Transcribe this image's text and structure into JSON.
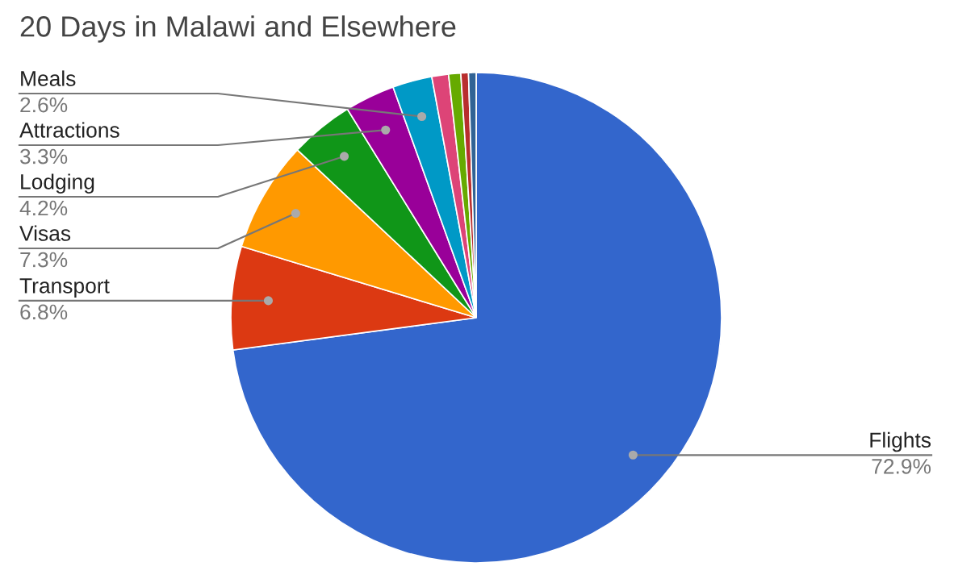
{
  "chart_data": {
    "type": "pie",
    "title": "20 Days in Malawi and Elsewhere",
    "categories": [
      "Flights",
      "Transport",
      "Visas",
      "Lodging",
      "Attractions",
      "Meals",
      null,
      null,
      null,
      null
    ],
    "values": [
      72.9,
      6.8,
      7.3,
      4.2,
      3.3,
      2.6,
      1.1,
      0.8,
      0.5,
      0.5
    ],
    "value_labels": [
      "72.9%",
      "6.8%",
      "7.3%",
      "4.2%",
      "3.3%",
      "2.6%",
      null,
      null,
      null,
      null
    ],
    "colors": [
      "#3366cc",
      "#dc3912",
      "#ff9900",
      "#109618",
      "#990099",
      "#0099c6",
      "#dd4477",
      "#66aa00",
      "#b82e2e",
      "#316395"
    ],
    "legend": false
  }
}
